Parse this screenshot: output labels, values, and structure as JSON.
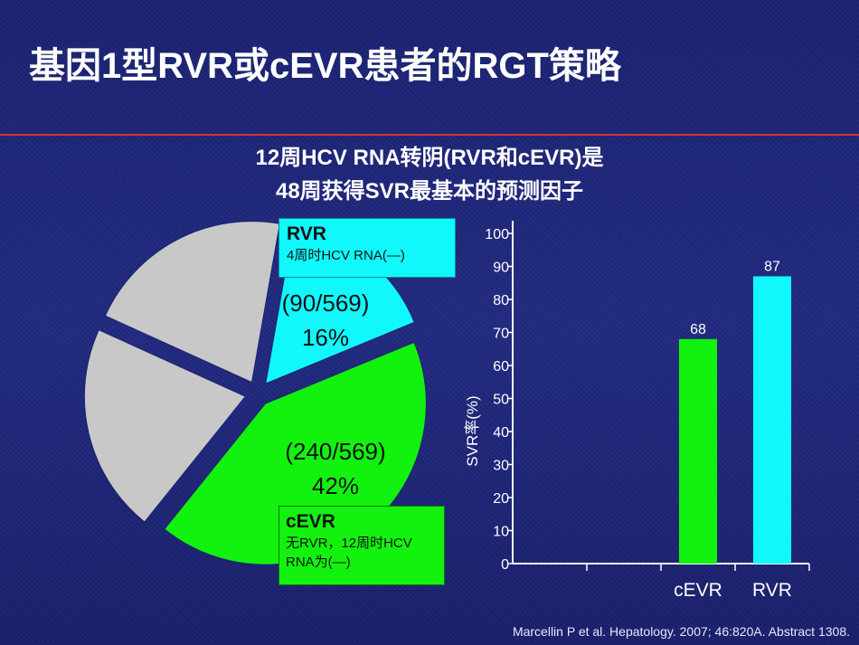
{
  "title": "基因1型RVR或cEVR患者的RGT策略",
  "subtitle": {
    "line1": "12周HCV RNA转阴(RVR和cEVR)是",
    "line2": "48周获得SVR最基本的预测因子"
  },
  "colors": {
    "rvr": "#10f8fc",
    "cevr": "#12f20e",
    "other": "#c8c8c8",
    "divider": "#d8303c",
    "background": "#1c2371"
  },
  "pie": {
    "rvr": {
      "box_title": "RVR",
      "box_desc": "4周时HCV RNA(—)",
      "count": "(90/569)",
      "percent": "16%"
    },
    "cevr": {
      "box_title": "cEVR",
      "box_desc_line1": "无RVR，12周时HCV",
      "box_desc_line2": "RNA为(—)",
      "count": "(240/569)",
      "percent": "42%"
    }
  },
  "chart_data": [
    {
      "type": "pie",
      "total": 569,
      "slices": [
        {
          "label": "RVR",
          "value": 90,
          "percent": 16,
          "color": "#10f8fc",
          "exploded": true
        },
        {
          "label": "cEVR",
          "value": 240,
          "percent": 42,
          "color": "#12f20e",
          "exploded": true
        },
        {
          "label": "",
          "percent": 21,
          "color": "#c8c8c8",
          "exploded": true
        },
        {
          "label": "",
          "percent": 21,
          "color": "#c8c8c8",
          "exploded": true
        }
      ]
    },
    {
      "type": "bar",
      "categories": [
        "cEVR",
        "RVR"
      ],
      "values": [
        68,
        87
      ],
      "colors": [
        "#12f20e",
        "#10f8fc"
      ],
      "ylabel": "SVR率(%)",
      "xlabel": "",
      "ylim": [
        0,
        100
      ],
      "yticks": [
        0,
        10,
        20,
        30,
        40,
        50,
        60,
        70,
        80,
        90,
        100
      ],
      "data_labels": [
        "68",
        "87"
      ],
      "grid": false
    }
  ],
  "citation": "Marcellin P et al. Hepatology. 2007; 46:820A. Abstract 1308."
}
